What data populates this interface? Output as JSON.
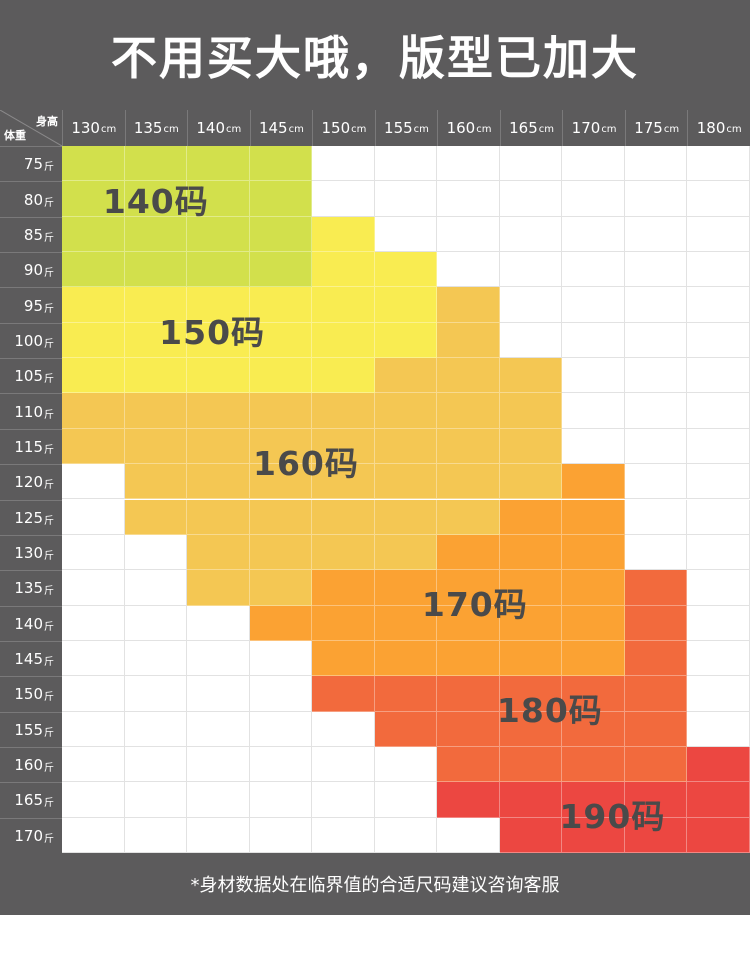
{
  "title": "不用买大哦，版型已加大",
  "corner": {
    "height_label": "身高",
    "weight_label": "体重"
  },
  "footer_note": "*身材数据处在临界值的合适尺码建议咨询客服",
  "chart_data": {
    "type": "heatmap",
    "columns": [
      {
        "num": "130",
        "unit": "cm"
      },
      {
        "num": "135",
        "unit": "cm"
      },
      {
        "num": "140",
        "unit": "cm"
      },
      {
        "num": "145",
        "unit": "cm"
      },
      {
        "num": "150",
        "unit": "cm"
      },
      {
        "num": "155",
        "unit": "cm"
      },
      {
        "num": "160",
        "unit": "cm"
      },
      {
        "num": "165",
        "unit": "cm"
      },
      {
        "num": "170",
        "unit": "cm"
      },
      {
        "num": "175",
        "unit": "cm"
      },
      {
        "num": "180",
        "unit": "cm"
      }
    ],
    "rows": [
      {
        "num": "75",
        "unit": "斤"
      },
      {
        "num": "80",
        "unit": "斤"
      },
      {
        "num": "85",
        "unit": "斤"
      },
      {
        "num": "90",
        "unit": "斤"
      },
      {
        "num": "95",
        "unit": "斤"
      },
      {
        "num": "100",
        "unit": "斤"
      },
      {
        "num": "105",
        "unit": "斤"
      },
      {
        "num": "110",
        "unit": "斤"
      },
      {
        "num": "115",
        "unit": "斤"
      },
      {
        "num": "120",
        "unit": "斤"
      },
      {
        "num": "125",
        "unit": "斤"
      },
      {
        "num": "130",
        "unit": "斤"
      },
      {
        "num": "135",
        "unit": "斤"
      },
      {
        "num": "140",
        "unit": "斤"
      },
      {
        "num": "145",
        "unit": "斤"
      },
      {
        "num": "150",
        "unit": "斤"
      },
      {
        "num": "155",
        "unit": "斤"
      },
      {
        "num": "160",
        "unit": "斤"
      },
      {
        "num": "165",
        "unit": "斤"
      },
      {
        "num": "170",
        "unit": "斤"
      }
    ],
    "sizes": [
      {
        "label": "140码",
        "color": "#d2e04c",
        "label_row": 1.5,
        "label_col": 1.5
      },
      {
        "label": "150码",
        "color": "#f9ec51",
        "label_row": 5.2,
        "label_col": 2.4
      },
      {
        "label": "160码",
        "color": "#f4c753",
        "label_row": 8.9,
        "label_col": 3.9
      },
      {
        "label": "170码",
        "color": "#fba233",
        "label_row": 12.9,
        "label_col": 6.6
      },
      {
        "label": "180码",
        "color": "#f26a3d",
        "label_row": 15.9,
        "label_col": 7.8
      },
      {
        "label": "190码",
        "color": "#ec4741",
        "label_row": 18.9,
        "label_col": 8.8
      }
    ],
    "grid": [
      [
        0,
        0,
        0,
        0,
        -1,
        -1,
        -1,
        -1,
        -1,
        -1,
        -1
      ],
      [
        0,
        0,
        0,
        0,
        -1,
        -1,
        -1,
        -1,
        -1,
        -1,
        -1
      ],
      [
        0,
        0,
        0,
        0,
        1,
        -1,
        -1,
        -1,
        -1,
        -1,
        -1
      ],
      [
        0,
        0,
        0,
        0,
        1,
        1,
        -1,
        -1,
        -1,
        -1,
        -1
      ],
      [
        1,
        1,
        1,
        1,
        1,
        1,
        2,
        -1,
        -1,
        -1,
        -1
      ],
      [
        1,
        1,
        1,
        1,
        1,
        1,
        2,
        -1,
        -1,
        -1,
        -1
      ],
      [
        1,
        1,
        1,
        1,
        1,
        2,
        2,
        2,
        -1,
        -1,
        -1
      ],
      [
        2,
        2,
        2,
        2,
        2,
        2,
        2,
        2,
        -1,
        -1,
        -1
      ],
      [
        2,
        2,
        2,
        2,
        2,
        2,
        2,
        2,
        -1,
        -1,
        -1
      ],
      [
        -1,
        2,
        2,
        2,
        2,
        2,
        2,
        2,
        3,
        -1,
        -1
      ],
      [
        -1,
        2,
        2,
        2,
        2,
        2,
        2,
        3,
        3,
        -1,
        -1
      ],
      [
        -1,
        -1,
        2,
        2,
        2,
        2,
        3,
        3,
        3,
        -1,
        -1
      ],
      [
        -1,
        -1,
        2,
        2,
        3,
        3,
        3,
        3,
        3,
        4,
        -1
      ],
      [
        -1,
        -1,
        -1,
        3,
        3,
        3,
        3,
        3,
        3,
        4,
        -1
      ],
      [
        -1,
        -1,
        -1,
        -1,
        3,
        3,
        3,
        3,
        3,
        4,
        -1
      ],
      [
        -1,
        -1,
        -1,
        -1,
        4,
        4,
        4,
        4,
        4,
        4,
        -1
      ],
      [
        -1,
        -1,
        -1,
        -1,
        -1,
        4,
        4,
        4,
        4,
        4,
        -1
      ],
      [
        -1,
        -1,
        -1,
        -1,
        -1,
        -1,
        4,
        4,
        4,
        4,
        5
      ],
      [
        -1,
        -1,
        -1,
        -1,
        -1,
        -1,
        5,
        5,
        5,
        5,
        5
      ],
      [
        -1,
        -1,
        -1,
        -1,
        -1,
        -1,
        -1,
        5,
        5,
        5,
        5
      ]
    ]
  }
}
